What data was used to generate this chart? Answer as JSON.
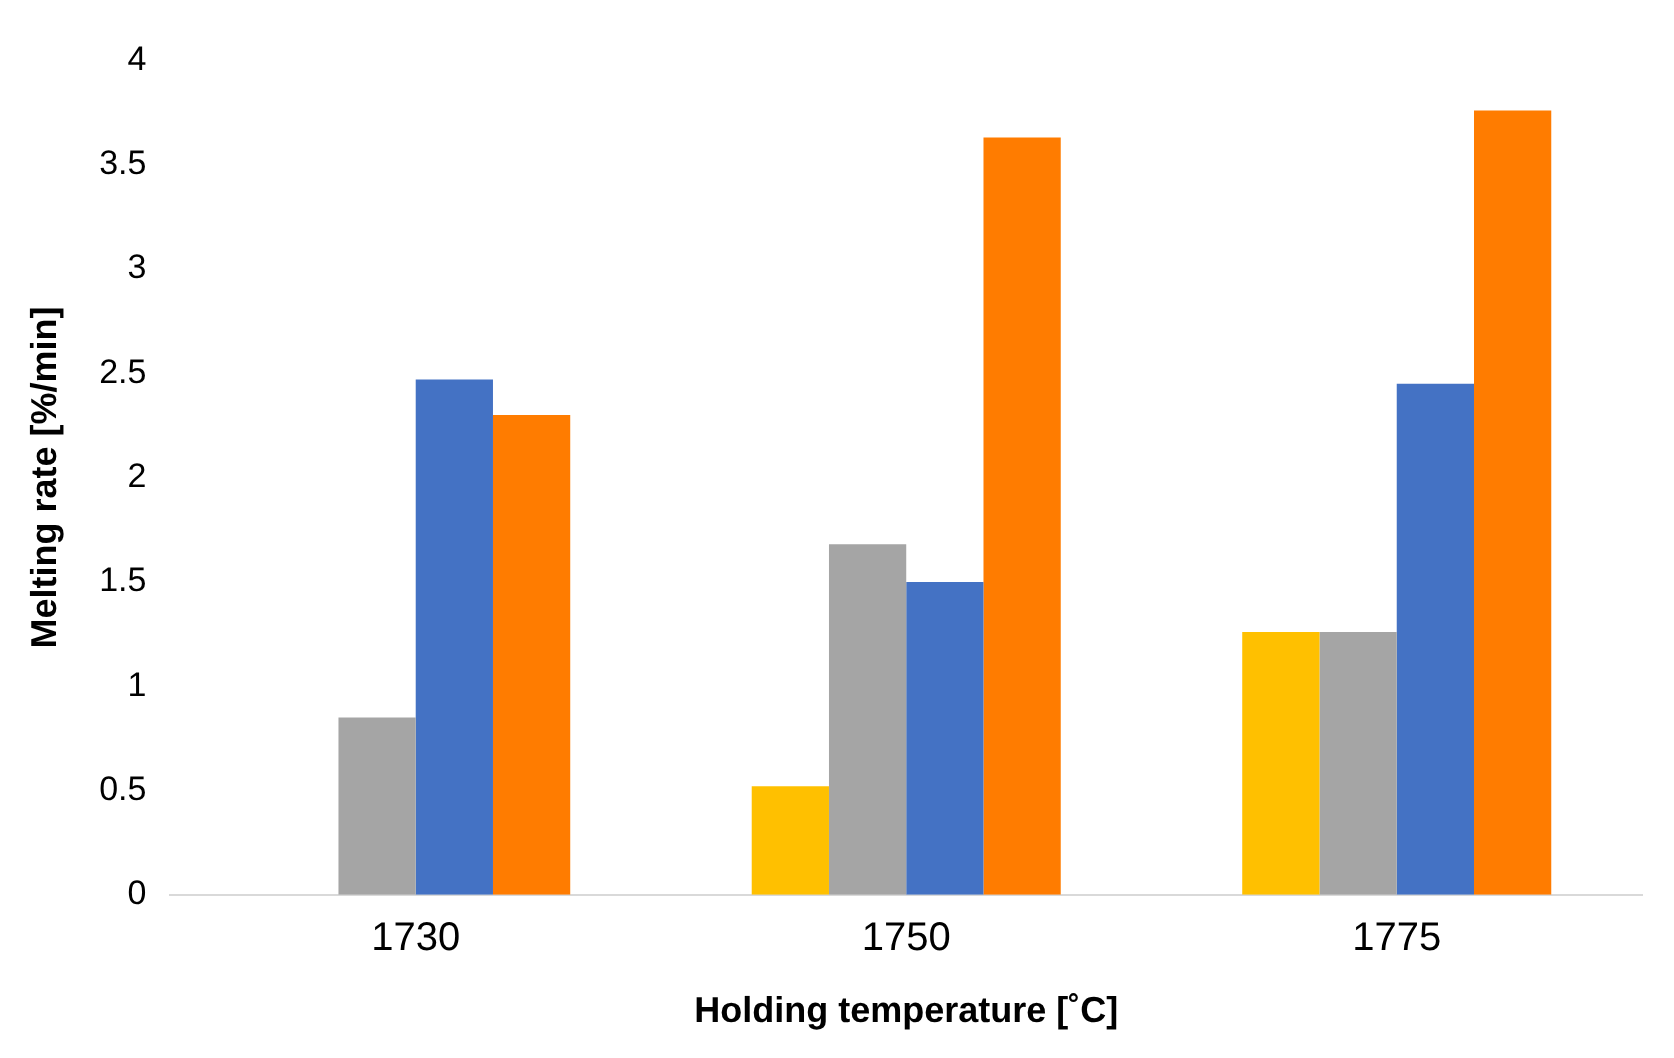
{
  "chart_data": {
    "type": "bar",
    "xlabel": "Holding temperature [˚C]",
    "ylabel": "Melting rate [%/min]",
    "categories": [
      "1730",
      "1750",
      "1775"
    ],
    "series": [
      {
        "color": "#ffc000",
        "values": [
          null,
          0.52,
          1.26
        ]
      },
      {
        "color": "#a5a5a5",
        "values": [
          0.85,
          1.68,
          1.26
        ]
      },
      {
        "color": "#4472c4",
        "values": [
          2.47,
          1.5,
          2.45
        ]
      },
      {
        "color": "#ff7c00",
        "values": [
          2.3,
          3.63,
          3.76
        ]
      }
    ],
    "ylim": [
      0,
      4
    ],
    "yticks": [
      0,
      0.5,
      1,
      1.5,
      2,
      2.5,
      3,
      3.5,
      4
    ],
    "grid": false,
    "legend": false
  }
}
